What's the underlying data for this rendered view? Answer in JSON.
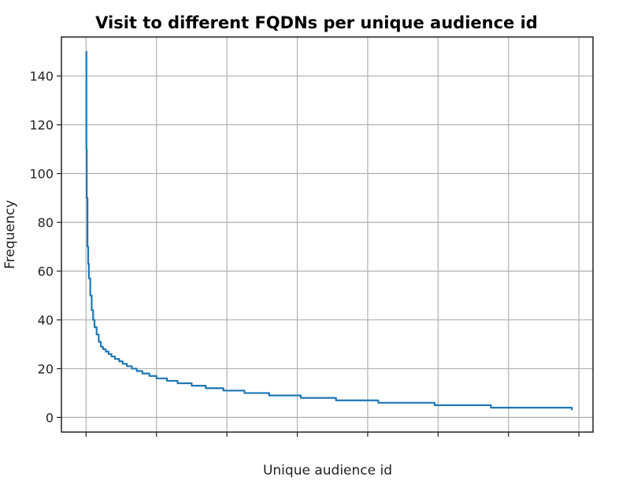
{
  "chart_data": {
    "type": "line",
    "title": "Visit to different FQDNs per unique audience id",
    "xlabel": "Unique audience id",
    "ylabel": "Frequency",
    "ylim": [
      -6,
      156
    ],
    "xlim": [
      -3.5,
      72
    ],
    "grid": true,
    "y_ticks": [
      0,
      20,
      40,
      60,
      80,
      100,
      120,
      140
    ],
    "x_tick_count": 8,
    "x_tick_labels_shown": false,
    "series": [
      {
        "color": "#1f77b4",
        "x": [
          0,
          0.05,
          0.1,
          0.2,
          0.3,
          0.4,
          0.6,
          0.8,
          1.0,
          1.2,
          1.5,
          1.8,
          2.1,
          2.4,
          2.8,
          3.2,
          3.6,
          4.1,
          4.7,
          5.2,
          5.8,
          6.5,
          7.2,
          8.0,
          9.0,
          10.0,
          11.5,
          13.0,
          15.0,
          17.0,
          19.5,
          22.5,
          26.0,
          30.5,
          35.5,
          41.5,
          49.5,
          57.5,
          69.0
        ],
        "y": [
          150,
          110,
          90,
          70,
          63,
          57,
          50,
          44,
          40,
          37,
          34,
          31,
          29,
          28,
          27,
          26,
          25,
          24,
          23,
          22,
          21,
          20,
          19,
          18,
          17,
          16,
          15,
          14,
          13,
          12,
          11,
          10,
          9,
          8,
          7,
          6,
          5,
          4,
          3
        ]
      }
    ]
  }
}
